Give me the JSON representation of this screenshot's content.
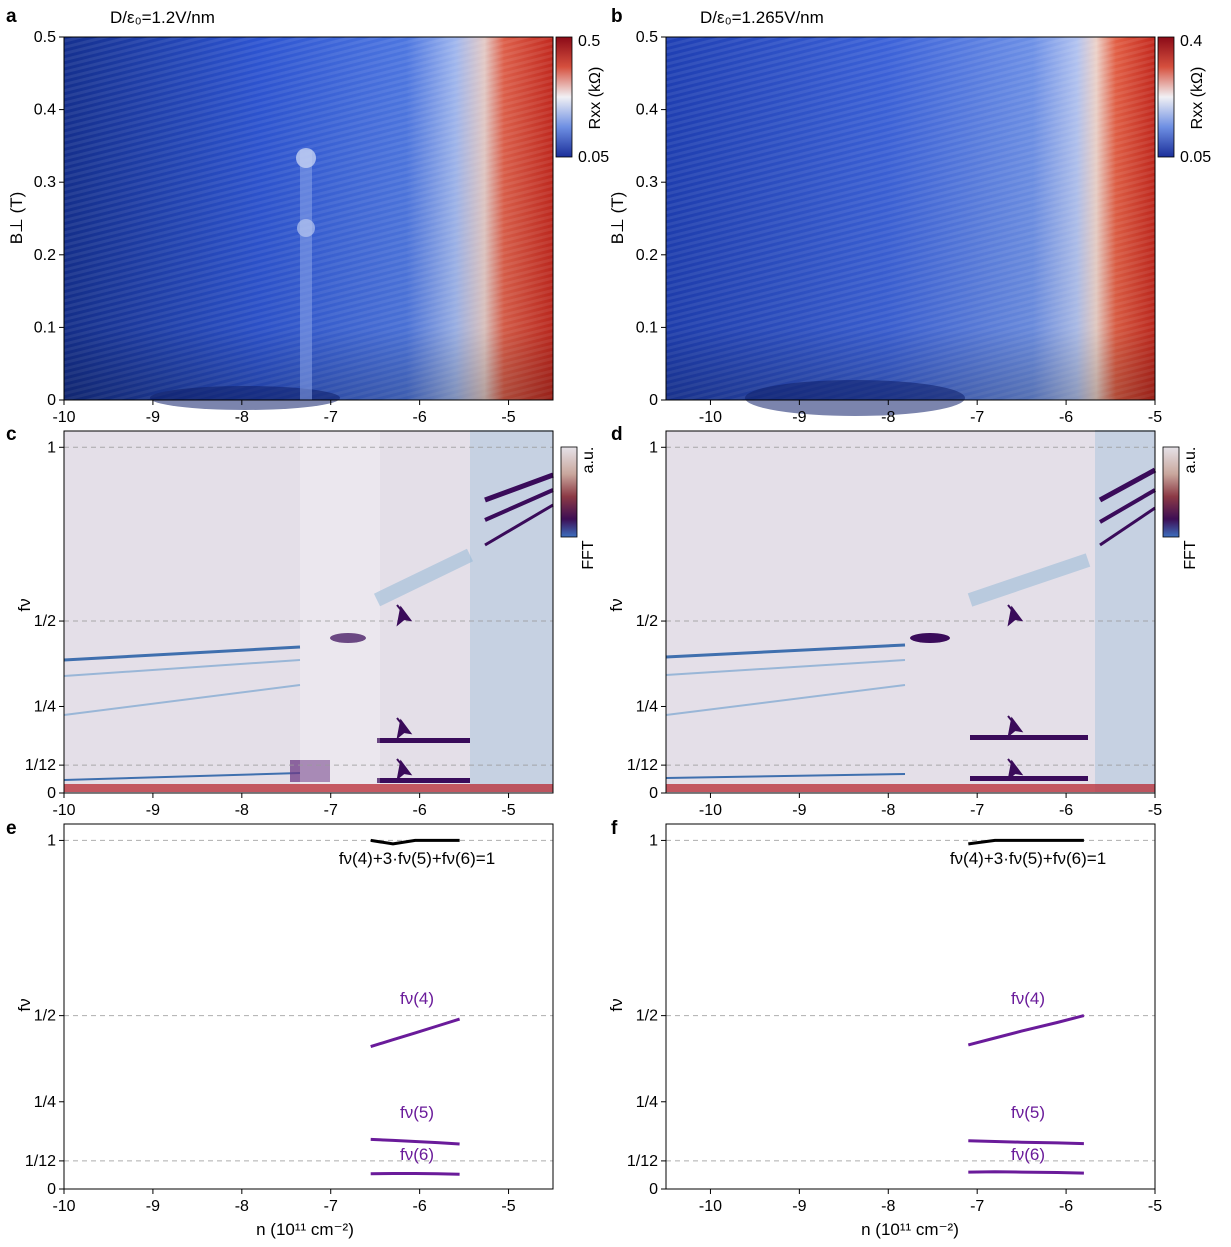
{
  "panels": {
    "a": {
      "label": "a",
      "title": "D/ε₀=1.2V/nm"
    },
    "b": {
      "label": "b",
      "title": "D/ε₀=1.265V/nm"
    },
    "c": {
      "label": "c"
    },
    "d": {
      "label": "d"
    },
    "e": {
      "label": "e"
    },
    "f": {
      "label": "f"
    }
  },
  "axes": {
    "b_ylabel": "B⊥ (T)",
    "f_ylabel": "fν",
    "n_xlabel": "n (10¹¹ cm⁻²)",
    "n_ticks_left": [
      "-10",
      "-9",
      "-8",
      "-7",
      "-6",
      "-5"
    ],
    "n_ticks_right": [
      "-10",
      "-9",
      "-8",
      "-7",
      "-6",
      "-5"
    ],
    "b_ticks": [
      "0",
      "0.1",
      "0.2",
      "0.3",
      "0.4",
      "0.5"
    ],
    "f_ticks": [
      "0",
      "1/12",
      "1/4",
      "1/2",
      "1"
    ]
  },
  "colorbars": {
    "a": {
      "label": "Rxx (kΩ)",
      "max": "0.5",
      "min": "0.05"
    },
    "b": {
      "label": "Rxx (kΩ)",
      "max": "0.4",
      "min": "0.05"
    },
    "c": {
      "label_top": "a.u.",
      "label_bottom": "FFT"
    },
    "d": {
      "label_top": "a.u.",
      "label_bottom": "FFT"
    }
  },
  "annotations": {
    "sum_rule": "fν(4)+3·fν(5)+fν(6)=1",
    "f4": "fν(4)",
    "f5": "fν(5)",
    "f6": "fν(6)"
  },
  "colors": {
    "purple_line": "#6a1b9a",
    "black_line": "#000000",
    "map_low": "#1f3fb0",
    "map_mid": "#dcdcf0",
    "map_high": "#b2182b",
    "fft_bg": "#e4dfe8",
    "fft_feature": "#3a0b5a"
  },
  "chart_data": [
    {
      "type": "heatmap",
      "panel": "a",
      "xlabel": "n (10¹¹ cm⁻²)",
      "ylabel": "B⊥ (T)",
      "xlim": [
        -10,
        -4.5
      ],
      "ylim": [
        0,
        0.5
      ],
      "colorbar": "Rxx (kΩ)",
      "clim": [
        0.05,
        0.5
      ]
    },
    {
      "type": "heatmap",
      "panel": "b",
      "xlabel": "n (10¹¹ cm⁻²)",
      "ylabel": "B⊥ (T)",
      "xlim": [
        -10.5,
        -5
      ],
      "ylim": [
        0,
        0.5
      ],
      "colorbar": "Rxx (kΩ)",
      "clim": [
        0.05,
        0.4
      ]
    },
    {
      "type": "heatmap",
      "panel": "c",
      "xlabel": "n (10¹¹ cm⁻²)",
      "ylabel": "fν",
      "xlim": [
        -10,
        -4.5
      ],
      "ylim": [
        0,
        1
      ],
      "colorbar": "FFT (a.u.)"
    },
    {
      "type": "heatmap",
      "panel": "d",
      "xlabel": "n (10¹¹ cm⁻²)",
      "ylabel": "fν",
      "xlim": [
        -10.5,
        -5
      ],
      "ylim": [
        0,
        1
      ],
      "colorbar": "FFT (a.u.)"
    },
    {
      "type": "line",
      "panel": "e",
      "xlabel": "n (10¹¹ cm⁻²)",
      "ylabel": "fν",
      "xlim": [
        -10,
        -4.5
      ],
      "ylim": [
        0,
        1
      ],
      "series": [
        {
          "name": "fν(4)+3·fν(5)+fν(6)=1",
          "x": [
            -6.55,
            -6.3,
            -6.05,
            -5.8,
            -5.55
          ],
          "y": [
            1.0,
            0.99,
            1.0,
            1.0,
            1.0
          ]
        },
        {
          "name": "fν(4)",
          "x": [
            -6.55,
            -6.3,
            -6.05,
            -5.8,
            -5.55
          ],
          "y": [
            0.41,
            0.43,
            0.45,
            0.47,
            0.49
          ]
        },
        {
          "name": "fν(5)",
          "x": [
            -6.55,
            -6.3,
            -6.05,
            -5.8,
            -5.55
          ],
          "y": [
            0.144,
            0.141,
            0.138,
            0.135,
            0.131
          ]
        },
        {
          "name": "fν(6)",
          "x": [
            -6.55,
            -6.3,
            -6.05,
            -5.8,
            -5.55
          ],
          "y": [
            0.045,
            0.046,
            0.046,
            0.045,
            0.044
          ]
        }
      ]
    },
    {
      "type": "line",
      "panel": "f",
      "xlabel": "n (10¹¹ cm⁻²)",
      "ylabel": "fν",
      "xlim": [
        -10.5,
        -5
      ],
      "ylim": [
        0,
        1
      ],
      "series": [
        {
          "name": "fν(4)+3·fν(5)+fν(6)=1",
          "x": [
            -7.1,
            -6.8,
            -6.5,
            -6.1,
            -5.8
          ],
          "y": [
            0.99,
            1.0,
            1.0,
            1.0,
            1.0
          ]
        },
        {
          "name": "fν(4)",
          "x": [
            -7.1,
            -6.8,
            -6.5,
            -6.1,
            -5.8
          ],
          "y": [
            0.415,
            0.435,
            0.455,
            0.48,
            0.5
          ]
        },
        {
          "name": "fν(5)",
          "x": [
            -7.1,
            -6.8,
            -6.5,
            -6.1,
            -5.8
          ],
          "y": [
            0.14,
            0.138,
            0.136,
            0.134,
            0.132
          ]
        },
        {
          "name": "fν(6)",
          "x": [
            -7.1,
            -6.8,
            -6.5,
            -6.1,
            -5.8
          ],
          "y": [
            0.05,
            0.051,
            0.05,
            0.049,
            0.047
          ]
        }
      ]
    }
  ]
}
